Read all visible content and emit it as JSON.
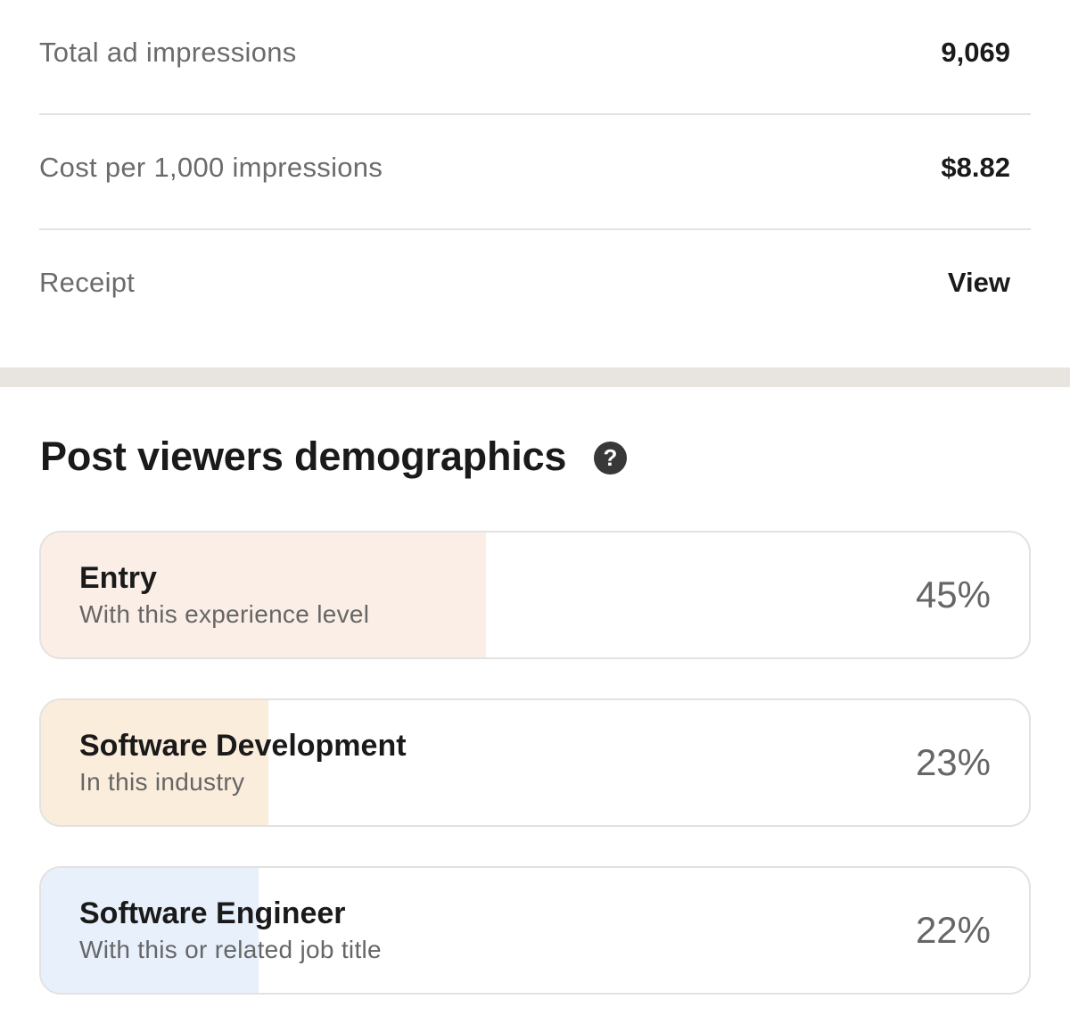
{
  "summary": {
    "rows": [
      {
        "label": "Total ad impressions",
        "value": "9,069"
      },
      {
        "label": "Cost per 1,000 impressions",
        "value": "$8.82"
      },
      {
        "label": "Receipt",
        "value": "View"
      }
    ]
  },
  "demographics": {
    "title": "Post viewers demographics",
    "help_icon": "?",
    "cards": [
      {
        "name": "Entry",
        "subtitle": "With this experience level",
        "percent_text": "45%",
        "percent": 45,
        "fill_color": "#fbeee7"
      },
      {
        "name": "Software Development",
        "subtitle": "In this industry",
        "percent_text": "23%",
        "percent": 23,
        "fill_color": "#fbeddc"
      },
      {
        "name": "Software Engineer",
        "subtitle": "With this or related job title",
        "percent_text": "22%",
        "percent": 22,
        "fill_color": "#e8f0fc"
      }
    ]
  }
}
